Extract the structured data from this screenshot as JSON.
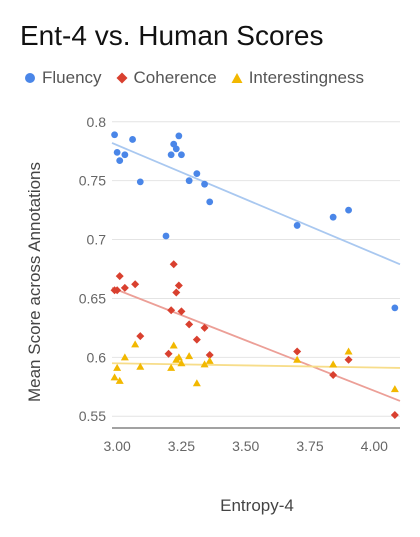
{
  "chart_data": {
    "type": "scatter",
    "title": "Ent-4 vs. Human Scores",
    "xlabel": "Entropy-4",
    "ylabel": "Mean Score across Annotations",
    "xlim": [
      2.98,
      4.1
    ],
    "ylim": [
      0.54,
      0.81
    ],
    "xticks": [
      "3.00",
      "3.25",
      "3.50",
      "3.75",
      "4.00"
    ],
    "xtick_values": [
      3.0,
      3.25,
      3.5,
      3.75,
      4.0
    ],
    "yticks": [
      "0.55",
      "0.6",
      "0.65",
      "0.7",
      "0.75",
      "0.8"
    ],
    "ytick_values": [
      0.55,
      0.6,
      0.65,
      0.7,
      0.75,
      0.8
    ],
    "grid": "horizontal",
    "legend_position": "top",
    "series": [
      {
        "name": "Fluency",
        "marker": "circle",
        "color": "#4a86e8",
        "trend_color": "#a9c8f0",
        "trend": [
          [
            2.98,
            0.782
          ],
          [
            4.1,
            0.679
          ]
        ],
        "points": [
          [
            2.99,
            0.789
          ],
          [
            3.0,
            0.774
          ],
          [
            3.01,
            0.767
          ],
          [
            3.03,
            0.772
          ],
          [
            3.06,
            0.785
          ],
          [
            3.09,
            0.749
          ],
          [
            3.19,
            0.703
          ],
          [
            3.21,
            0.772
          ],
          [
            3.22,
            0.781
          ],
          [
            3.23,
            0.777
          ],
          [
            3.24,
            0.788
          ],
          [
            3.25,
            0.772
          ],
          [
            3.28,
            0.75
          ],
          [
            3.31,
            0.756
          ],
          [
            3.34,
            0.747
          ],
          [
            3.36,
            0.732
          ],
          [
            3.7,
            0.712
          ],
          [
            3.84,
            0.719
          ],
          [
            3.9,
            0.725
          ],
          [
            4.08,
            0.642
          ]
        ]
      },
      {
        "name": "Coherence",
        "marker": "diamond",
        "color": "#d9402f",
        "trend_color": "#ec9f97",
        "trend": [
          [
            2.98,
            0.659
          ],
          [
            4.1,
            0.563
          ]
        ],
        "points": [
          [
            2.99,
            0.657
          ],
          [
            3.0,
            0.657
          ],
          [
            3.01,
            0.669
          ],
          [
            3.03,
            0.659
          ],
          [
            3.07,
            0.662
          ],
          [
            3.09,
            0.618
          ],
          [
            3.2,
            0.603
          ],
          [
            3.21,
            0.64
          ],
          [
            3.22,
            0.679
          ],
          [
            3.23,
            0.655
          ],
          [
            3.24,
            0.661
          ],
          [
            3.25,
            0.639
          ],
          [
            3.28,
            0.628
          ],
          [
            3.31,
            0.615
          ],
          [
            3.34,
            0.625
          ],
          [
            3.36,
            0.602
          ],
          [
            3.7,
            0.605
          ],
          [
            3.84,
            0.585
          ],
          [
            3.9,
            0.598
          ],
          [
            4.08,
            0.551
          ]
        ]
      },
      {
        "name": "Interestingness",
        "marker": "triangle",
        "color": "#f2b800",
        "trend_color": "#f7dd8a",
        "trend": [
          [
            2.98,
            0.595
          ],
          [
            4.1,
            0.591
          ]
        ],
        "points": [
          [
            2.99,
            0.583
          ],
          [
            3.0,
            0.591
          ],
          [
            3.01,
            0.58
          ],
          [
            3.03,
            0.6
          ],
          [
            3.07,
            0.611
          ],
          [
            3.09,
            0.592
          ],
          [
            3.21,
            0.591
          ],
          [
            3.22,
            0.61
          ],
          [
            3.23,
            0.598
          ],
          [
            3.24,
            0.6
          ],
          [
            3.25,
            0.595
          ],
          [
            3.28,
            0.601
          ],
          [
            3.31,
            0.578
          ],
          [
            3.34,
            0.594
          ],
          [
            3.36,
            0.597
          ],
          [
            3.7,
            0.598
          ],
          [
            3.84,
            0.594
          ],
          [
            3.9,
            0.605
          ],
          [
            4.08,
            0.573
          ]
        ]
      }
    ]
  }
}
